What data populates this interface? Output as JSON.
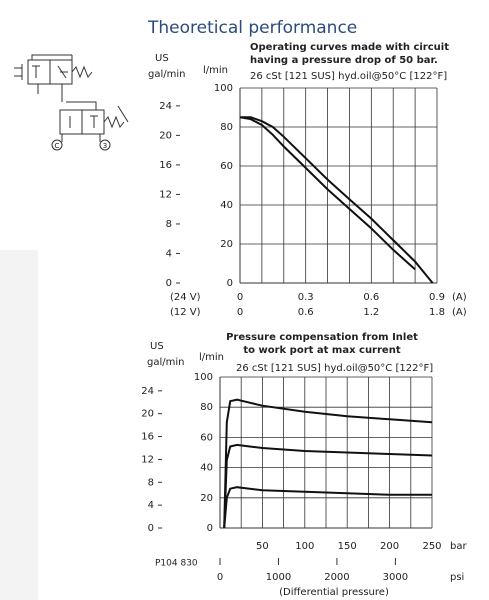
{
  "title": "Theoretical performance",
  "schematic": {
    "ports": [
      "C",
      "3"
    ]
  },
  "figure_code": "P104 830",
  "chart_data": [
    {
      "type": "line",
      "title": [
        "Operating curves made with circuit",
        "having a pressure drop of 50 bar."
      ],
      "subtitle": "26 cSt [121 SUS] hyd.oil@50°C [122°F]",
      "ylabel": "l/min",
      "y2label": [
        "US",
        "gal/min"
      ],
      "ylim": [
        0,
        100
      ],
      "yticks": [
        0,
        20,
        40,
        60,
        80,
        100
      ],
      "y2lim": [
        0,
        26.42
      ],
      "y2ticks": [
        0,
        4,
        8,
        12,
        16,
        20,
        24
      ],
      "xlim": [
        0,
        0.9
      ],
      "xticks": [
        0,
        0.3,
        0.6,
        0.9
      ],
      "xminor": [
        0.1,
        0.2,
        0.4,
        0.5,
        0.7,
        0.8
      ],
      "x2lim": [
        0,
        1.8
      ],
      "x2ticks": [
        0,
        0.6,
        1.2,
        1.8
      ],
      "x_row_label": "(24 V)",
      "x2_row_label": "(12 V)",
      "xunit": "(A)",
      "x2unit": "(A)",
      "grid": true,
      "x": [
        0,
        0.05,
        0.1,
        0.15,
        0.2,
        0.3,
        0.4,
        0.5,
        0.6,
        0.7,
        0.8,
        0.88
      ],
      "series": [
        {
          "color": "#111111",
          "values": [
            85,
            85,
            83,
            80,
            75,
            64,
            53,
            43,
            33,
            22,
            11,
            0
          ]
        },
        {
          "color": "#111111",
          "values": [
            85,
            84,
            81,
            76,
            70,
            59,
            48,
            38,
            28,
            17,
            7,
            null
          ]
        }
      ]
    },
    {
      "type": "line",
      "title": [
        "Pressure compensation from Inlet",
        "to work port at max current"
      ],
      "subtitle": "26 cSt [121 SUS] hyd.oil@50°C [122°F]",
      "ylabel": "l/min",
      "y2label": [
        "US",
        "gal/min"
      ],
      "ylim": [
        0,
        100
      ],
      "yticks": [
        0,
        20,
        40,
        60,
        80,
        100
      ],
      "y2lim": [
        0,
        26.42
      ],
      "y2ticks": [
        0,
        4,
        8,
        12,
        16,
        20,
        24
      ],
      "xlim": [
        0,
        250
      ],
      "xticks": [
        50,
        100,
        150,
        200,
        250
      ],
      "xminor": [
        25,
        75,
        125,
        175,
        225
      ],
      "x2lim": [
        0,
        3626
      ],
      "x2ticks": [
        0,
        1000,
        2000,
        3000
      ],
      "xunit": "bar",
      "x2unit": "psi",
      "xlabel": "(Differential pressure)",
      "grid": true,
      "x": [
        5,
        8,
        12,
        20,
        35,
        50,
        100,
        150,
        200,
        250
      ],
      "series": [
        {
          "color": "#111111",
          "values": [
            0,
            70,
            84,
            85,
            83,
            81,
            77,
            74,
            72,
            70
          ]
        },
        {
          "color": "#111111",
          "values": [
            0,
            45,
            54,
            55,
            54,
            53,
            51,
            50,
            49,
            48
          ]
        },
        {
          "color": "#111111",
          "values": [
            0,
            20,
            26,
            27,
            26,
            25,
            24,
            23,
            22,
            22
          ]
        }
      ]
    }
  ]
}
